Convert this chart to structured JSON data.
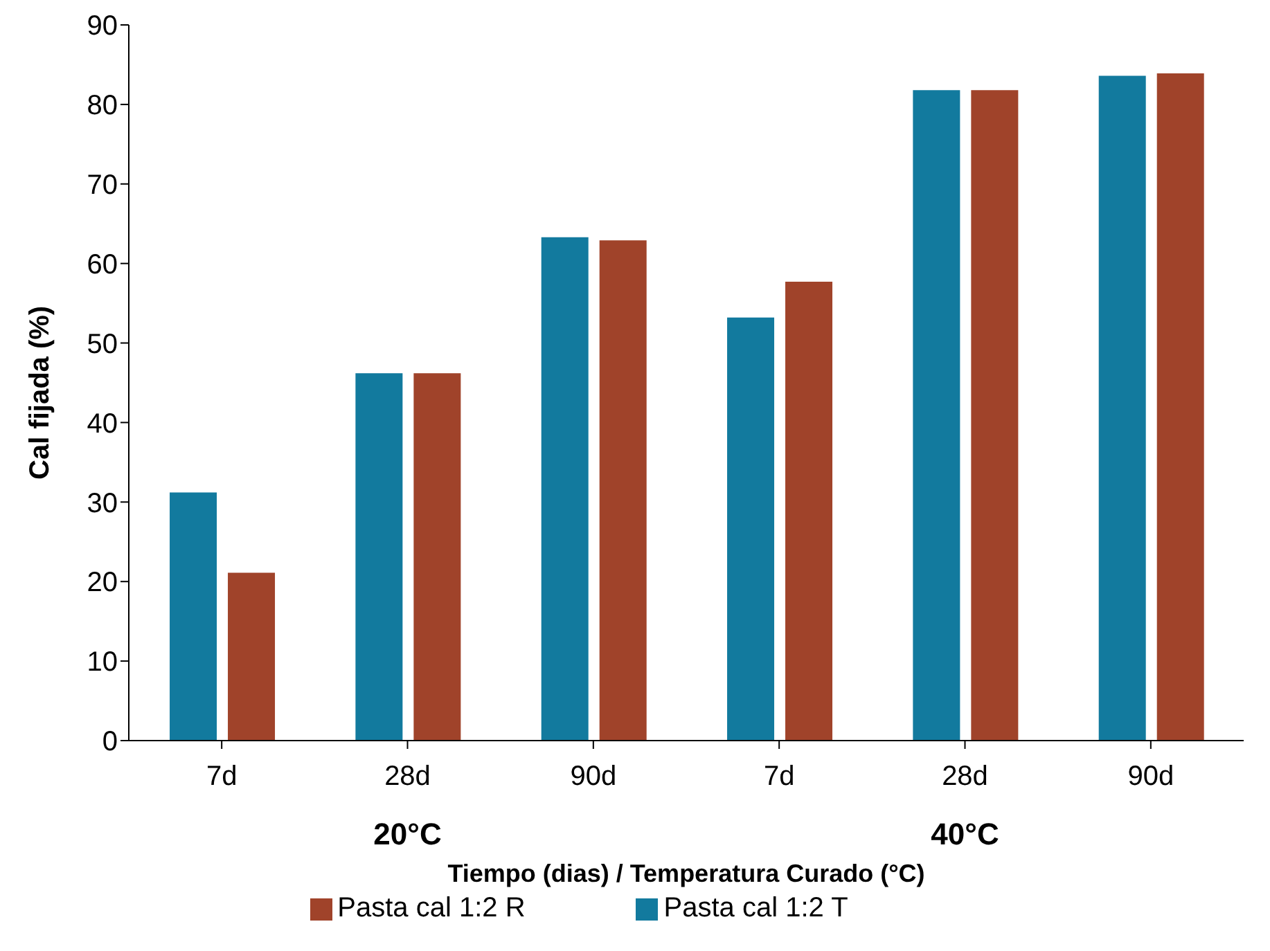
{
  "chart_data": {
    "type": "bar",
    "ylabel": "Cal fijada (%)",
    "xlabel": "Tiempo (dias) / Temperatura Curado (°C)",
    "categories": [
      "7d",
      "28d",
      "90d",
      "7d",
      "28d",
      "90d"
    ],
    "series": [
      {
        "name": "Pasta cal 1:2 T",
        "color": "#127a9e",
        "values": [
          31.2,
          46.2,
          63.3,
          53.2,
          81.8,
          83.6
        ]
      },
      {
        "name": "Pasta cal 1:2 R",
        "color": "#a0432a",
        "values": [
          21.1,
          46.2,
          62.9,
          57.7,
          81.8,
          83.9
        ]
      }
    ],
    "ylim": [
      0,
      90
    ],
    "yticks": [
      0,
      10,
      20,
      30,
      40,
      50,
      60,
      70,
      80,
      90
    ],
    "grid": false,
    "legend": "bottom",
    "annotations": [
      "20°C",
      "40°C"
    ]
  }
}
